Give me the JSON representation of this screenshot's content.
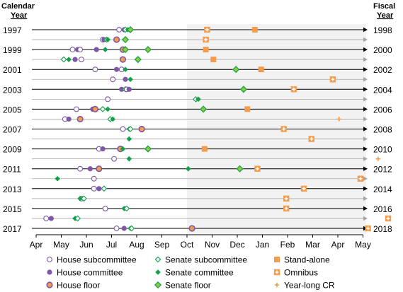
{
  "chart_data": {
    "type": "scatter",
    "left_header": [
      "Calendar",
      "Year"
    ],
    "right_header": [
      "Fiscal",
      "Year"
    ],
    "x_ticks": [
      "Apr",
      "May",
      "Jun",
      "Jul",
      "Aug",
      "Sep",
      "Oct",
      "Nov",
      "Dec",
      "Jan",
      "Feb",
      "Mar",
      "Apr",
      "May"
    ],
    "calendar_years": [
      "1997",
      "1999",
      "2001",
      "2003",
      "2005",
      "2007",
      "2009",
      "2011",
      "2013",
      "2015",
      "2017"
    ],
    "fiscal_years": [
      "1998",
      "2000",
      "2002",
      "2004",
      "2006",
      "2008",
      "2010",
      "2012",
      "2014",
      "2016",
      "2018"
    ],
    "shaded_region_start": "Oct",
    "legend": [
      {
        "key": "hs",
        "label": "House subcommittee"
      },
      {
        "key": "ss",
        "label": "Senate subcommittee"
      },
      {
        "key": "sa",
        "label": "Stand-alone"
      },
      {
        "key": "hc",
        "label": "House committee"
      },
      {
        "key": "sc",
        "label": "Senate committee"
      },
      {
        "key": "om",
        "label": "Omnibus"
      },
      {
        "key": "hf",
        "label": "House floor"
      },
      {
        "key": "sf",
        "label": "Senate floor"
      },
      {
        "key": "cr",
        "label": "Year-long CR"
      }
    ],
    "rows": [
      {
        "fy": 1998,
        "points": [
          [
            "hs",
            3.3
          ],
          [
            "hc",
            3.5
          ],
          [
            "ss",
            3.55
          ],
          [
            "sc",
            3.65
          ],
          [
            "sf",
            3.75
          ],
          [
            "om",
            6.8
          ],
          [
            "sa",
            8.7
          ]
        ]
      },
      {
        "fy": 1999,
        "points": [
          [
            "hs",
            2.65
          ],
          [
            "hc",
            2.7
          ],
          [
            "ss",
            2.8
          ],
          [
            "sc",
            2.85
          ],
          [
            "hf",
            3.2
          ],
          [
            "sf",
            3.55
          ],
          [
            "om",
            6.75
          ]
        ]
      },
      {
        "fy": 2000,
        "points": [
          [
            "hs",
            1.45
          ],
          [
            "hc",
            1.65
          ],
          [
            "hs",
            1.75
          ],
          [
            "hc",
            2.4
          ],
          [
            "sc",
            2.75
          ],
          [
            "hf",
            3.45
          ],
          [
            "sf",
            3.55
          ],
          [
            "sf",
            4.45
          ],
          [
            "sa",
            6.75
          ]
        ]
      },
      {
        "fy": 2001,
        "points": [
          [
            "ss",
            1.1
          ],
          [
            "sc",
            1.3
          ],
          [
            "hc",
            1.55
          ],
          [
            "hs",
            1.8
          ],
          [
            "hf",
            3.45
          ],
          [
            "sf",
            4.05
          ],
          [
            "sa",
            7.05
          ]
        ]
      },
      {
        "fy": 2002,
        "points": [
          [
            "hs",
            2.35
          ],
          [
            "hc",
            3.2
          ],
          [
            "hs",
            3.4
          ],
          [
            "sc",
            3.55
          ],
          [
            "sf",
            7.95
          ],
          [
            "sa",
            8.95
          ]
        ]
      },
      {
        "fy": 2003,
        "points": [
          [
            "hs",
            3.05
          ],
          [
            "hc",
            3.55
          ],
          [
            "sc",
            3.75
          ],
          [
            "om",
            11.8
          ]
        ]
      },
      {
        "fy": 2004,
        "points": [
          [
            "hc",
            3.4
          ],
          [
            "ss",
            3.55
          ],
          [
            "hs",
            3.6
          ],
          [
            "hc",
            3.7
          ],
          [
            "sf",
            8.25
          ],
          [
            "om",
            10.25
          ]
        ]
      },
      {
        "fy": 2005,
        "points": [
          [
            "hs",
            2.85
          ],
          [
            "ss",
            6.35
          ],
          [
            "sc",
            6.45
          ]
        ]
      },
      {
        "fy": 2006,
        "points": [
          [
            "hs",
            1.6
          ],
          [
            "hc",
            2.25
          ],
          [
            "hf",
            2.35
          ],
          [
            "ss",
            2.65
          ],
          [
            "sc",
            2.85
          ],
          [
            "sf",
            6.65
          ],
          [
            "sa",
            8.4
          ]
        ]
      },
      {
        "fy": 2007,
        "points": [
          [
            "hs",
            1.15
          ],
          [
            "hc",
            1.3
          ],
          [
            "hf",
            1.75
          ],
          [
            "ss",
            2.95
          ],
          [
            "sc",
            3.05
          ],
          [
            "cr",
            12.05
          ]
        ]
      },
      {
        "fy": 2008,
        "points": [
          [
            "hs",
            3.45
          ],
          [
            "sc",
            3.7
          ],
          [
            "ss",
            3.75
          ],
          [
            "hf",
            4.2
          ],
          [
            "om",
            9.85
          ]
        ]
      },
      {
        "fy": 2009,
        "points": [
          [
            "sc",
            3.7
          ],
          [
            "om",
            10.95
          ]
        ]
      },
      {
        "fy": 2010,
        "points": [
          [
            "hs",
            2.5
          ],
          [
            "hc",
            2.65
          ],
          [
            "hf",
            3.35
          ],
          [
            "sc",
            3.45
          ],
          [
            "sf",
            4.45
          ],
          [
            "sa",
            6.7
          ]
        ]
      },
      {
        "fy": 2011,
        "points": [
          [
            "hs",
            3.1
          ],
          [
            "sc",
            3.7
          ],
          [
            "cr",
            13.6
          ]
        ]
      },
      {
        "fy": 2012,
        "points": [
          [
            "hs",
            1.75
          ],
          [
            "hc",
            2.15
          ],
          [
            "hf",
            2.5
          ],
          [
            "sc",
            6.05
          ],
          [
            "sf",
            8.1
          ],
          [
            "om",
            8.8
          ]
        ]
      },
      {
        "fy": 2013,
        "points": [
          [
            "hs",
            2.3
          ],
          [
            "sc",
            0.85
          ],
          [
            "om",
            12.9
          ]
        ]
      },
      {
        "fy": 2014,
        "points": [
          [
            "hs",
            2.3
          ],
          [
            "hc",
            2.5
          ],
          [
            "ss",
            2.7
          ],
          [
            "om",
            10.65
          ]
        ]
      },
      {
        "fy": 2015,
        "points": [
          [
            "hs",
            1.8
          ],
          [
            "sc",
            1.75
          ],
          [
            "ss",
            1.9
          ],
          [
            "om",
            9.95
          ]
        ]
      },
      {
        "fy": 2016,
        "points": [
          [
            "hs",
            2.75
          ],
          [
            "sc",
            3.5
          ],
          [
            "ss",
            3.6
          ],
          [
            "om",
            9.95
          ]
        ]
      },
      {
        "fy": 2017,
        "points": [
          [
            "hs",
            0.4
          ],
          [
            "hc",
            0.6
          ],
          [
            "sc",
            1.55
          ],
          [
            "ss",
            1.65
          ],
          [
            "om",
            14.0
          ]
        ]
      },
      {
        "fy": 2018,
        "points": [
          [
            "hs",
            3.2
          ],
          [
            "hc",
            3.5
          ],
          [
            "sc",
            3.75
          ],
          [
            "ss",
            3.8
          ],
          [
            "hf",
            6.2
          ],
          [
            "om",
            13.2
          ]
        ]
      }
    ]
  }
}
